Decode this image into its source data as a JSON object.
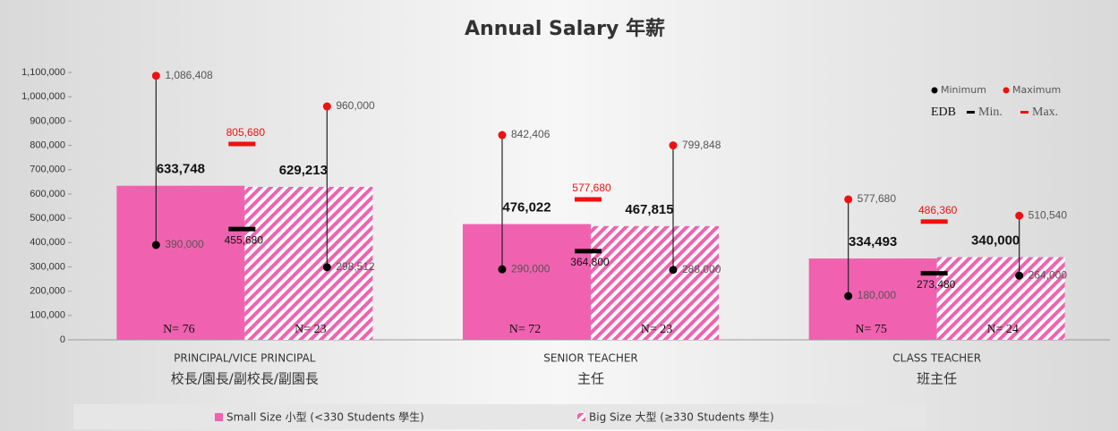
{
  "chart_data": {
    "type": "bar",
    "title": "Annual Salary 年薪",
    "categories": [
      "PRINCIPAL/VICE PRINCIPAL",
      "SENIOR TEACHER",
      "CLASS TEACHER"
    ],
    "categories_zh": [
      "校長/園長/副校長/副園長",
      "主任",
      "班主任"
    ],
    "series": [
      {
        "name": "Small Size 小型 (<330 Students 學生)",
        "color": "#f062b0",
        "pattern": "solid",
        "values": [
          633748,
          476022,
          334493
        ],
        "value_labels": [
          "633,748",
          "476,022",
          "334,493"
        ],
        "n_labels": [
          "N= 76",
          "N= 72",
          "N= 75"
        ],
        "min": [
          390000,
          290000,
          180000
        ],
        "min_labels": [
          "390,000",
          "290,000",
          "180,000"
        ],
        "max": [
          1086408,
          842406,
          577680
        ],
        "max_labels": [
          "1,086,408",
          "842,406",
          "577,680"
        ]
      },
      {
        "name": "Big Size 大型 (≥330 Students 學生)",
        "color": "#f062b0",
        "pattern": "hatch",
        "values": [
          629213,
          467815,
          340000
        ],
        "value_labels": [
          "629,213",
          "467,815",
          "340,000"
        ],
        "n_labels": [
          "N= 23",
          "N= 23",
          "N= 24"
        ],
        "min": [
          298512,
          288000,
          264000
        ],
        "min_labels": [
          "298,512",
          "288,000",
          "264,000"
        ],
        "max": [
          960000,
          799848,
          510540
        ],
        "max_labels": [
          "960,000",
          "799,848",
          "510,540"
        ]
      }
    ],
    "edb": {
      "min": [
        455680,
        364800,
        273480
      ],
      "min_labels": [
        "455,680",
        "364,800",
        "273,480"
      ],
      "max": [
        805680,
        577680,
        486360
      ],
      "max_labels": [
        "805,680",
        "577,680",
        "486,360"
      ],
      "min_color": "#000000",
      "max_color": "#ee1111"
    },
    "range_legend": {
      "min": "Minimum",
      "max": "Maximum",
      "min_color": "#000000",
      "max_color": "#ee1111"
    },
    "edb_legend": {
      "title": "EDB",
      "min": "Min.",
      "max": "Max."
    },
    "ylim": [
      0,
      1100000
    ],
    "yticks": [
      0,
      {
        "value": 100000,
        "label": "100,000"
      },
      {
        "value": 200000,
        "label": "200,000"
      },
      {
        "value": 300000,
        "label": "300,000"
      },
      {
        "value": 400000,
        "label": "400,000"
      },
      {
        "value": 500000,
        "label": "500,000"
      },
      {
        "value": 600000,
        "label": "600,000"
      },
      {
        "value": 700000,
        "label": "700,000"
      },
      {
        "value": 800000,
        "label": "800,000"
      },
      {
        "value": 900000,
        "label": "900,000"
      },
      {
        "value": 1000000,
        "label": "1,000,000"
      },
      {
        "value": 1100000,
        "label": "1,100,000"
      }
    ],
    "grid": false
  }
}
